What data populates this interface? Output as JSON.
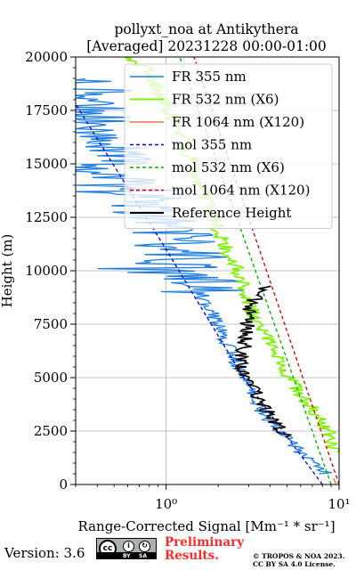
{
  "chart_data": {
    "type": "line",
    "title": "pollyxt_noa at Antikythera",
    "subtitle": "[Averaged] 20231228 00:00-01:00",
    "xlabel": "Range-Corrected Signal [Mm⁻¹ * sr⁻¹]",
    "ylabel": "Height (m)",
    "xscale": "log",
    "xlim": [
      0.3,
      10
    ],
    "ylim": [
      0,
      20000
    ],
    "xticks": [
      1,
      10
    ],
    "xtick_labels": [
      "10⁰",
      "10¹"
    ],
    "yticks": [
      0,
      2500,
      5000,
      7500,
      10000,
      12500,
      15000,
      17500,
      20000
    ],
    "ytick_labels": [
      "0",
      "2500",
      "5000",
      "7500",
      "10000",
      "12500",
      "15000",
      "17500",
      "20000"
    ],
    "grid": true,
    "legend_position": "top-right",
    "series": [
      {
        "name": "FR 355 nm",
        "color": "#1f7de0",
        "style": "solid",
        "width": 1.3,
        "noisy": true,
        "x": [
          8.5,
          6.0,
          4.5,
          3.5,
          3.0,
          2.6,
          2.3,
          2.0,
          1.7,
          1.5,
          1.3,
          1.1,
          0.9,
          0.75,
          0.6,
          0.5,
          0.4,
          0.35
        ],
        "y": [
          500,
          1500,
          2500,
          3500,
          4500,
          5500,
          6500,
          7500,
          8500,
          9500,
          10500,
          11500,
          12500,
          13500,
          14500,
          15500,
          17000,
          19000
        ]
      },
      {
        "name": "FR 532 nm (X6)",
        "color": "#7cf000",
        "style": "solid",
        "width": 1.6,
        "noisy": true,
        "x": [
          9.7,
          8.5,
          7.0,
          5.7,
          4.8,
          4.0,
          3.4,
          3.0,
          2.8,
          2.4,
          2.1,
          1.9,
          1.7,
          1.5,
          1.35,
          1.2,
          1.05,
          0.9,
          0.75,
          0.6
        ],
        "y": [
          1500,
          2500,
          3500,
          4500,
          5500,
          6500,
          7500,
          8500,
          9500,
          10500,
          11500,
          12500,
          13500,
          14500,
          15500,
          16500,
          17500,
          18500,
          19500,
          20000
        ]
      },
      {
        "name": "FR 1064 nm (X120)",
        "color": "#f07050",
        "style": "solid",
        "width": 1.3,
        "noisy": false,
        "x": [
          9.6,
          9.3
        ],
        "y": [
          0,
          300
        ]
      },
      {
        "name": "mol 355 nm",
        "color": "#0000dd",
        "style": "dashed",
        "width": 1.3,
        "noisy": false,
        "x": [
          8.0,
          2.8,
          1.0,
          0.3
        ],
        "y": [
          0,
          5000,
          11000,
          17800
        ]
      },
      {
        "name": "mol 532 nm (X6)",
        "color": "#00b000",
        "style": "dashed",
        "width": 1.3,
        "noisy": false,
        "x": [
          9.0,
          1.2
        ],
        "y": [
          0,
          20000
        ]
      },
      {
        "name": "mol 1064 nm (X120)",
        "color": "#dd0000",
        "style": "dashed",
        "width": 1.3,
        "noisy": false,
        "x": [
          10.0,
          1.45
        ],
        "y": [
          0,
          20000
        ]
      },
      {
        "name": "Reference Height",
        "color": "#000000",
        "style": "solid",
        "width": 1.6,
        "noisy": true,
        "x": [
          5.0,
          4.0,
          3.3,
          2.7,
          3.0,
          3.4,
          3.7
        ],
        "y": [
          2200,
          3200,
          4300,
          5400,
          8000,
          9000,
          9300
        ]
      }
    ]
  },
  "footer": {
    "version": "Version: 3.6",
    "license_badge": {
      "top": "cc",
      "bottom_left": "BY",
      "bottom_right": "SA"
    },
    "preliminary_line1": "Preliminary",
    "preliminary_line2": "Results.",
    "credit_line1": "© TROPOS & NOA 2023.",
    "credit_line2": "CC BY SA 4.0 License."
  }
}
